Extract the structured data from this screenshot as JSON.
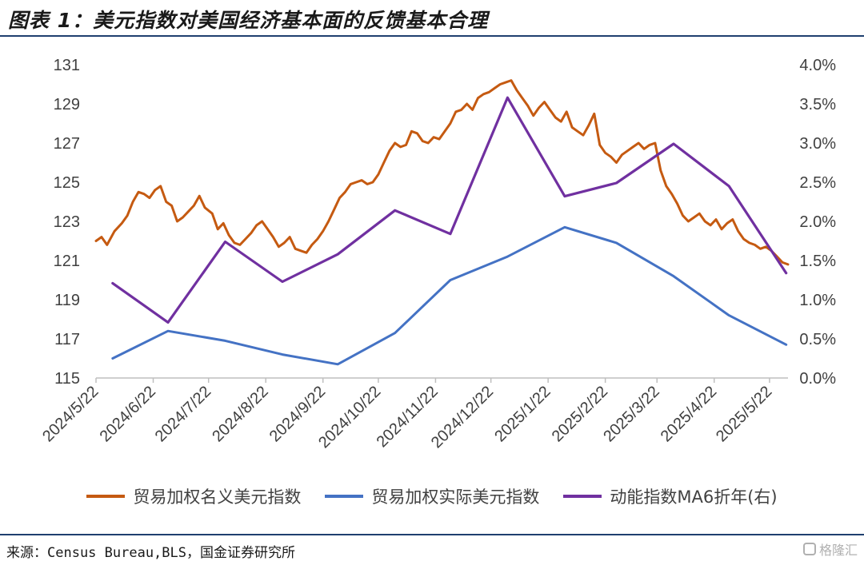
{
  "figure": {
    "title": "图表 1：美元指数对美国经济基本面的反馈基本合理",
    "source": "来源：Census Bureau,BLS，国金证券研究所",
    "watermark": "格隆汇"
  },
  "chart_data": {
    "type": "line",
    "title": "",
    "x_ticks": [
      "2024/5/22",
      "2024/6/22",
      "2024/7/22",
      "2024/8/22",
      "2024/9/22",
      "2024/10/22",
      "2024/11/22",
      "2024/12/22",
      "2025/1/22",
      "2025/2/22",
      "2025/3/22",
      "2025/4/22",
      "2025/5/22"
    ],
    "x_range": [
      "2024-05-22",
      "2025-06-01"
    ],
    "y_left": {
      "range": [
        115,
        131
      ],
      "ticks": [
        "131",
        "129",
        "127",
        "125",
        "123",
        "121",
        "119",
        "117",
        "115"
      ]
    },
    "y_right": {
      "range": [
        0,
        4
      ],
      "ticks": [
        "4.0%",
        "3.5%",
        "3.0%",
        "2.5%",
        "2.0%",
        "1.5%",
        "1.0%",
        "0.5%",
        "0.0%"
      ]
    },
    "grid": false,
    "legend_position": "bottom",
    "series": [
      {
        "name": "贸易加权名义美元指数",
        "axis": "left",
        "color": "#c55a11",
        "x": [
          "2024-05-22",
          "2024-05-25",
          "2024-05-28",
          "2024-06-01",
          "2024-06-05",
          "2024-06-08",
          "2024-06-11",
          "2024-06-14",
          "2024-06-17",
          "2024-06-20",
          "2024-06-23",
          "2024-06-26",
          "2024-06-29",
          "2024-07-02",
          "2024-07-05",
          "2024-07-08",
          "2024-07-11",
          "2024-07-14",
          "2024-07-17",
          "2024-07-20",
          "2024-07-24",
          "2024-07-27",
          "2024-07-30",
          "2024-08-02",
          "2024-08-05",
          "2024-08-08",
          "2024-08-11",
          "2024-08-14",
          "2024-08-17",
          "2024-08-20",
          "2024-08-23",
          "2024-08-26",
          "2024-08-29",
          "2024-09-01",
          "2024-09-04",
          "2024-09-07",
          "2024-09-10",
          "2024-09-13",
          "2024-09-16",
          "2024-09-19",
          "2024-09-22",
          "2024-09-25",
          "2024-09-28",
          "2024-10-01",
          "2024-10-04",
          "2024-10-07",
          "2024-10-10",
          "2024-10-13",
          "2024-10-16",
          "2024-10-19",
          "2024-10-22",
          "2024-10-25",
          "2024-10-28",
          "2024-10-31",
          "2024-11-03",
          "2024-11-06",
          "2024-11-09",
          "2024-11-12",
          "2024-11-15",
          "2024-11-18",
          "2024-11-21",
          "2024-11-24",
          "2024-11-27",
          "2024-11-30",
          "2024-12-03",
          "2024-12-06",
          "2024-12-09",
          "2024-12-12",
          "2024-12-15",
          "2024-12-18",
          "2024-12-21",
          "2024-12-24",
          "2024-12-27",
          "2024-12-30",
          "2025-01-02",
          "2025-01-05",
          "2025-01-08",
          "2025-01-11",
          "2025-01-14",
          "2025-01-17",
          "2025-01-20",
          "2025-01-23",
          "2025-01-26",
          "2025-01-29",
          "2025-02-01",
          "2025-02-04",
          "2025-02-07",
          "2025-02-10",
          "2025-02-13",
          "2025-02-16",
          "2025-02-19",
          "2025-02-22",
          "2025-02-25",
          "2025-02-28",
          "2025-03-03",
          "2025-03-06",
          "2025-03-09",
          "2025-03-12",
          "2025-03-15",
          "2025-03-18",
          "2025-03-21",
          "2025-03-24",
          "2025-03-27",
          "2025-03-30",
          "2025-04-02",
          "2025-04-05",
          "2025-04-08",
          "2025-04-11",
          "2025-04-14",
          "2025-04-17",
          "2025-04-20",
          "2025-04-23",
          "2025-04-26",
          "2025-04-29",
          "2025-05-02",
          "2025-05-05",
          "2025-05-08",
          "2025-05-11",
          "2025-05-14",
          "2025-05-17",
          "2025-05-20",
          "2025-05-23",
          "2025-05-26",
          "2025-05-29",
          "2025-06-01"
        ],
        "values": [
          122.0,
          122.2,
          121.8,
          122.5,
          122.9,
          123.3,
          124.0,
          124.5,
          124.4,
          124.2,
          124.6,
          124.8,
          124.0,
          123.8,
          123.0,
          123.2,
          123.5,
          123.8,
          124.3,
          123.7,
          123.4,
          122.6,
          122.9,
          122.3,
          121.9,
          121.8,
          122.1,
          122.4,
          122.8,
          123.0,
          122.6,
          122.2,
          121.7,
          121.9,
          122.2,
          121.6,
          121.5,
          121.4,
          121.8,
          122.1,
          122.5,
          123.0,
          123.6,
          124.2,
          124.5,
          124.9,
          125.0,
          125.1,
          124.9,
          125.0,
          125.4,
          126.0,
          126.6,
          127.0,
          126.8,
          126.9,
          127.6,
          127.5,
          127.1,
          127.0,
          127.3,
          127.2,
          127.6,
          128.0,
          128.6,
          128.7,
          129.0,
          128.7,
          129.3,
          129.5,
          129.6,
          129.8,
          130.0,
          130.1,
          130.2,
          129.7,
          129.3,
          128.9,
          128.4,
          128.8,
          129.1,
          128.7,
          128.3,
          128.1,
          128.6,
          127.8,
          127.6,
          127.4,
          127.9,
          128.5,
          126.9,
          126.5,
          126.3,
          126.0,
          126.4,
          126.6,
          126.8,
          127.0,
          126.7,
          126.9,
          127.0,
          125.6,
          124.8,
          124.4,
          123.9,
          123.3,
          123.0,
          123.2,
          123.4,
          123.0,
          122.8,
          123.1,
          122.6,
          122.9,
          123.1,
          122.5,
          122.1,
          121.9,
          121.8,
          121.6,
          121.7,
          121.5,
          121.2,
          120.9,
          120.8
        ]
      },
      {
        "name": "贸易加权实际美元指数",
        "axis": "left",
        "color": "#4472c4",
        "x": [
          "2024-05-31",
          "2024-06-30",
          "2024-07-31",
          "2024-08-31",
          "2024-09-30",
          "2024-10-31",
          "2024-11-30",
          "2024-12-31",
          "2025-01-31",
          "2025-02-28",
          "2025-03-31",
          "2025-04-30",
          "2025-05-31"
        ],
        "values": [
          116.0,
          117.4,
          116.9,
          116.2,
          115.7,
          117.3,
          120.0,
          121.2,
          122.7,
          121.9,
          120.2,
          118.2,
          116.7
        ]
      },
      {
        "name": "动能指数MA6折年(右)",
        "axis": "right",
        "color": "#7030a0",
        "x": [
          "2024-05-31",
          "2024-06-30",
          "2024-07-31",
          "2024-08-31",
          "2024-09-30",
          "2024-10-31",
          "2024-11-30",
          "2024-12-31",
          "2025-01-31",
          "2025-02-28",
          "2025-03-31",
          "2025-04-30",
          "2025-05-31"
        ],
        "values": [
          1.21,
          0.71,
          1.74,
          1.23,
          1.58,
          2.14,
          1.84,
          3.58,
          2.32,
          2.49,
          2.99,
          2.45,
          1.34
        ]
      }
    ]
  }
}
